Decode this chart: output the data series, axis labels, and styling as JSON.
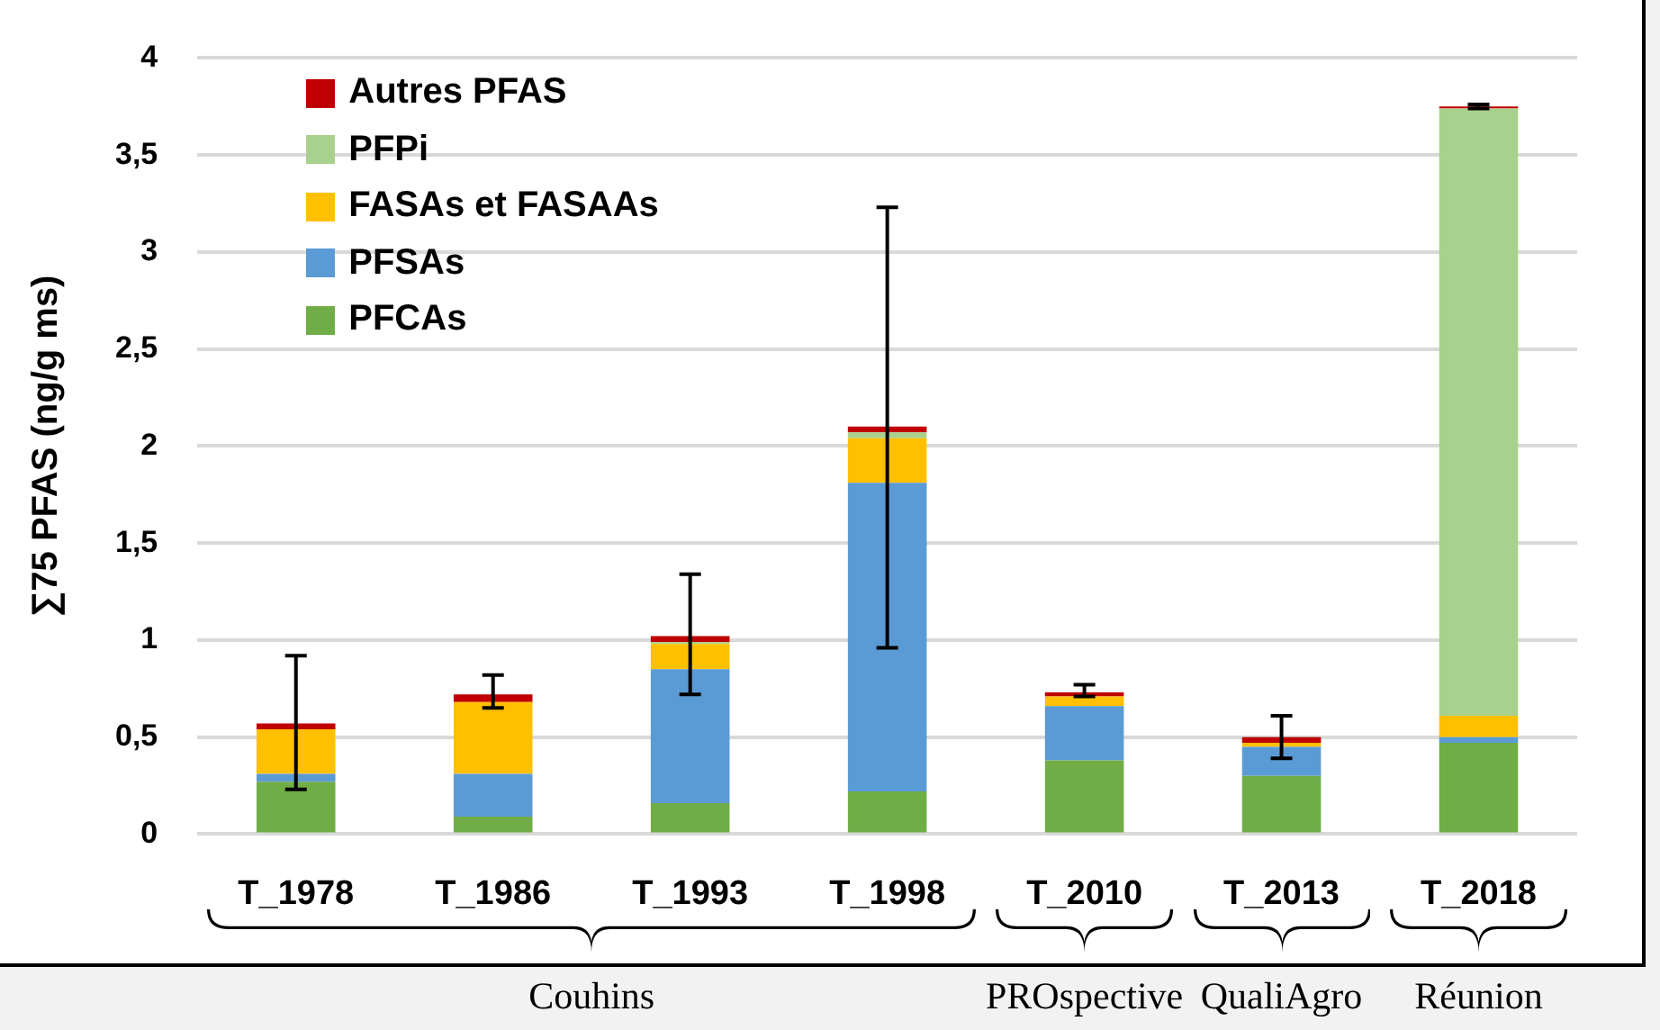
{
  "chart_data": {
    "type": "bar",
    "stacked": true,
    "ylabel": "∑75 PFAS (ng/g ms)",
    "categories": [
      "T_1978",
      "T_1986",
      "T_1993",
      "T_1998",
      "T_2010",
      "T_2013",
      "T_2018"
    ],
    "series": [
      {
        "name": "PFCAs",
        "color": "#70ad47",
        "values": [
          0.27,
          0.09,
          0.16,
          0.22,
          0.38,
          0.3,
          0.47
        ]
      },
      {
        "name": "PFSAs",
        "color": "#5b9bd5",
        "values": [
          0.04,
          0.22,
          0.69,
          1.59,
          0.28,
          0.15,
          0.03
        ]
      },
      {
        "name": "FASAs et FASAAs",
        "color": "#ffc000",
        "values": [
          0.23,
          0.37,
          0.13,
          0.23,
          0.05,
          0.02,
          0.11
        ]
      },
      {
        "name": "PFPi",
        "color": "#a9d18e",
        "values": [
          null,
          null,
          0.01,
          0.03,
          null,
          null,
          3.13
        ]
      },
      {
        "name": "Autres PFAS",
        "color": "#c00000",
        "values": [
          0.03,
          0.04,
          0.03,
          0.03,
          0.02,
          0.03,
          0.01
        ],
        "errors": [
          [
            0.23,
            0.92
          ],
          [
            0.65,
            0.82
          ],
          [
            0.72,
            1.34
          ],
          [
            0.96,
            3.23
          ],
          [
            0.71,
            0.77
          ],
          [
            0.39,
            0.61
          ],
          [
            3.74,
            3.76
          ]
        ]
      }
    ],
    "ylim": [
      0,
      4
    ],
    "yticks": [
      0,
      {
        "value": 0.5,
        "label": "0,5"
      },
      1,
      {
        "value": 1.5,
        "label": "1,5"
      },
      2,
      {
        "value": 2.5,
        "label": "2,5"
      },
      3,
      {
        "value": 3.5,
        "label": "3,5"
      },
      4
    ],
    "grid": "y",
    "legend": "top left",
    "annotations": [
      "Couhins",
      "PROspective",
      "QualiAgro",
      "Réunion"
    ]
  }
}
